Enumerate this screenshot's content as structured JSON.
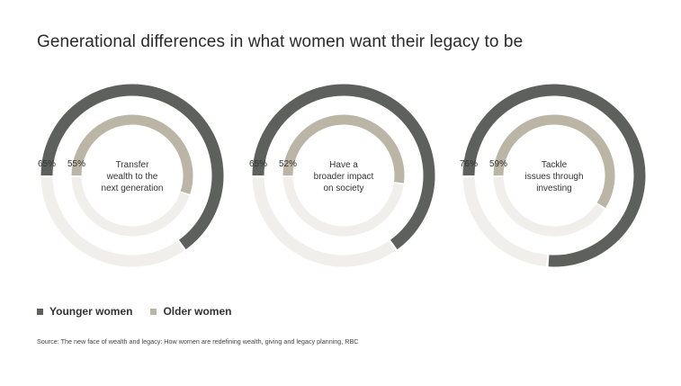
{
  "title": "Generational differences in what women want their legacy to be",
  "colors": {
    "younger": "#5d605d",
    "older": "#bbb5a5",
    "track": "#f0efeb"
  },
  "legend": {
    "younger_label": "Younger women",
    "older_label": "Older women"
  },
  "source": "Source: The new face of wealth and legacy: How women are redefining wealth, giving and legacy planning, RBC",
  "chart_data": [
    {
      "type": "radial-bar",
      "label": "Transfer wealth to the next generation",
      "label_lines": [
        "Transfer",
        "wealth to the",
        "next generation"
      ],
      "series": [
        {
          "name": "Younger women",
          "value": 65,
          "value_label": "65%"
        },
        {
          "name": "Older women",
          "value": 55,
          "value_label": "55%"
        }
      ]
    },
    {
      "type": "radial-bar",
      "label": "Have a broader impact on society",
      "label_lines": [
        "Have a",
        "broader impact",
        "on society"
      ],
      "series": [
        {
          "name": "Younger women",
          "value": 65,
          "value_label": "65%"
        },
        {
          "name": "Older women",
          "value": 52,
          "value_label": "52%"
        }
      ]
    },
    {
      "type": "radial-bar",
      "label": "Tackle issues through investing",
      "label_lines": [
        "Tackle",
        "issues through",
        "investing"
      ],
      "series": [
        {
          "name": "Younger women",
          "value": 76,
          "value_label": "76%"
        },
        {
          "name": "Older women",
          "value": 59,
          "value_label": "59%"
        }
      ]
    }
  ]
}
